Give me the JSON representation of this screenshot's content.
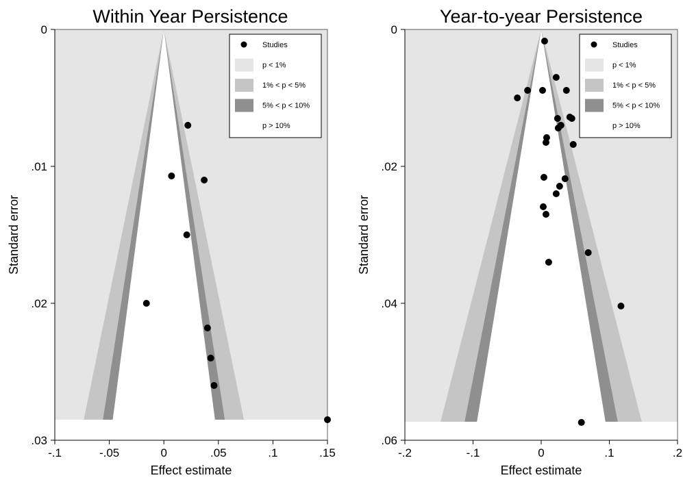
{
  "chart_data": [
    {
      "type": "scatter",
      "title": "Within Year Persistence",
      "xlabel": "Effect estimate",
      "ylabel": "Standard error",
      "xlim": [
        -0.1,
        0.15
      ],
      "ylim": [
        0.03,
        0
      ],
      "y_inverted": true,
      "x_ticks": [
        "-.1",
        "-.05",
        "0",
        ".05",
        ".1",
        ".15"
      ],
      "x_tick_values": [
        -0.1,
        -0.05,
        0,
        0.05,
        0.1,
        0.15
      ],
      "y_ticks": [
        "0",
        ".01",
        ".02",
        ".03"
      ],
      "y_tick_values": [
        0,
        0.01,
        0.02,
        0.03
      ],
      "contour_center": 0,
      "contour_max_se": 0.0285,
      "grid": false,
      "legend_position": "top-right",
      "legend": [
        {
          "label": "Studies",
          "kind": "marker",
          "color": "#000000"
        },
        {
          "label": "p < 1%",
          "kind": "swatch",
          "color": "#e5e5e5"
        },
        {
          "label": "1% < p < 5%",
          "kind": "swatch",
          "color": "#c5c5c5"
        },
        {
          "label": "5% < p < 10%",
          "kind": "swatch",
          "color": "#8f8f8f"
        },
        {
          "label": "p > 10%",
          "kind": "swatch",
          "color": "#ffffff"
        }
      ],
      "series": [
        {
          "name": "Studies",
          "points": [
            {
              "x": 0.022,
              "y": 0.007
            },
            {
              "x": 0.007,
              "y": 0.0107
            },
            {
              "x": 0.037,
              "y": 0.011
            },
            {
              "x": 0.021,
              "y": 0.015
            },
            {
              "x": -0.016,
              "y": 0.02
            },
            {
              "x": 0.04,
              "y": 0.0218
            },
            {
              "x": 0.043,
              "y": 0.024
            },
            {
              "x": 0.046,
              "y": 0.026
            },
            {
              "x": 0.15,
              "y": 0.0285
            }
          ]
        }
      ]
    },
    {
      "type": "scatter",
      "title": "Year-to-year Persistence",
      "xlabel": "Effect estimate",
      "ylabel": "Standard error",
      "xlim": [
        -0.2,
        0.2
      ],
      "ylim": [
        0.06,
        0
      ],
      "y_inverted": true,
      "x_ticks": [
        "-.2",
        "-.1",
        "0",
        ".1",
        ".2"
      ],
      "x_tick_values": [
        -0.2,
        -0.1,
        0,
        0.1,
        0.2
      ],
      "y_ticks": [
        "0",
        ".02",
        ".04",
        ".06"
      ],
      "y_tick_values": [
        0,
        0.02,
        0.04,
        0.06
      ],
      "contour_center": 0,
      "contour_max_se": 0.0573,
      "grid": false,
      "legend_position": "top-right",
      "legend": [
        {
          "label": "Studies",
          "kind": "marker",
          "color": "#000000"
        },
        {
          "label": "p < 1%",
          "kind": "swatch",
          "color": "#e5e5e5"
        },
        {
          "label": "1% < p < 5%",
          "kind": "swatch",
          "color": "#c5c5c5"
        },
        {
          "label": "5% < p < 10%",
          "kind": "swatch",
          "color": "#8f8f8f"
        },
        {
          "label": "p > 10%",
          "kind": "swatch",
          "color": "#ffffff"
        }
      ],
      "series": [
        {
          "name": "Studies",
          "points": [
            {
              "x": 0.005,
              "y": 0.0017
            },
            {
              "x": 0.022,
              "y": 0.007
            },
            {
              "x": -0.02,
              "y": 0.0089
            },
            {
              "x": 0.002,
              "y": 0.0089
            },
            {
              "x": 0.037,
              "y": 0.0089
            },
            {
              "x": -0.035,
              "y": 0.01
            },
            {
              "x": 0.024,
              "y": 0.013
            },
            {
              "x": 0.042,
              "y": 0.0128
            },
            {
              "x": 0.045,
              "y": 0.013
            },
            {
              "x": 0.029,
              "y": 0.014
            },
            {
              "x": 0.025,
              "y": 0.0144
            },
            {
              "x": 0.008,
              "y": 0.0158
            },
            {
              "x": 0.007,
              "y": 0.0165
            },
            {
              "x": 0.047,
              "y": 0.0168
            },
            {
              "x": 0.004,
              "y": 0.0216
            },
            {
              "x": 0.035,
              "y": 0.0218
            },
            {
              "x": 0.027,
              "y": 0.0229
            },
            {
              "x": 0.022,
              "y": 0.024
            },
            {
              "x": 0.003,
              "y": 0.0259
            },
            {
              "x": 0.007,
              "y": 0.027
            },
            {
              "x": 0.069,
              "y": 0.0326
            },
            {
              "x": 0.011,
              "y": 0.034
            },
            {
              "x": 0.117,
              "y": 0.0404
            },
            {
              "x": 0.059,
              "y": 0.0574
            }
          ]
        }
      ]
    }
  ]
}
